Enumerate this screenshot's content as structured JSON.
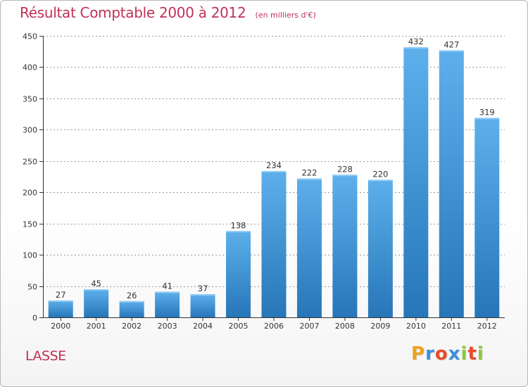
{
  "header": {
    "title": "Résultat Comptable 2000 à 2012",
    "subtitle": "(en milliers d'€)"
  },
  "footer": {
    "commune": "LASSE",
    "logo_letters": [
      "P",
      "r",
      "o",
      "x",
      "i",
      "t",
      "i"
    ],
    "logo_colors": [
      "#f0a020",
      "#3a8fd8",
      "#e84a2a",
      "#3a8fd8",
      "#8cc63f",
      "#e84a2a",
      "#8cc63f"
    ]
  },
  "colors": {
    "bar_top": "#5eb0ec",
    "bar_bottom": "#2676b8",
    "title": "#c0305a",
    "grid": "#999999",
    "axis": "#333333"
  },
  "chart_data": {
    "type": "bar",
    "title": "Résultat Comptable 2000 à 2012",
    "subtitle": "(en milliers d'€)",
    "xlabel": "",
    "ylabel": "",
    "categories": [
      "2000",
      "2001",
      "2002",
      "2003",
      "2004",
      "2005",
      "2006",
      "2007",
      "2008",
      "2009",
      "2010",
      "2011",
      "2012"
    ],
    "values": [
      27,
      45,
      26,
      41,
      37,
      138,
      234,
      222,
      228,
      220,
      432,
      427,
      319
    ],
    "ylim": [
      0,
      450
    ],
    "yticks": [
      0,
      50,
      100,
      150,
      200,
      250,
      300,
      350,
      400,
      450
    ],
    "grid": true,
    "legend": "none"
  }
}
